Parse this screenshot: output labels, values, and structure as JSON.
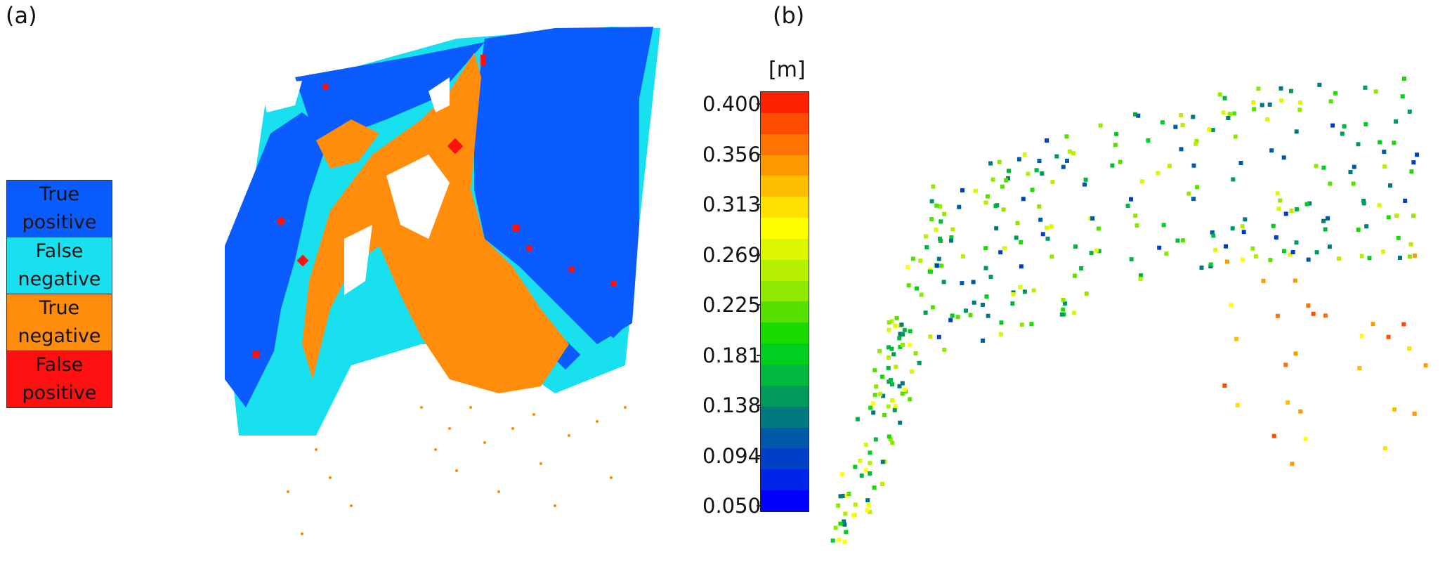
{
  "panel_a": {
    "label": "(a)",
    "legend": [
      {
        "label": "True\npositive",
        "color": "#0a5cff"
      },
      {
        "label": "False\nnegative",
        "color": "#18e0ee"
      },
      {
        "label": "True\nnegative",
        "color": "#ff8c0a"
      },
      {
        "label": "False\npositive",
        "color": "#ff1010"
      }
    ]
  },
  "panel_b": {
    "label": "(b)",
    "colorbar": {
      "unit": "[m]",
      "ticks": [
        "0.400",
        "0.356",
        "0.313",
        "0.269",
        "0.225",
        "0.181",
        "0.138",
        "0.094",
        "0.050"
      ],
      "colors": [
        "#ff2200",
        "#ff4d00",
        "#ff7300",
        "#ff9900",
        "#ffbf00",
        "#ffe000",
        "#ffff00",
        "#ddf700",
        "#b6ef00",
        "#8fe800",
        "#55e000",
        "#1adb00",
        "#00cf20",
        "#00b840",
        "#009a5a",
        "#007a80",
        "#0058a8",
        "#0040c8",
        "#0024e8",
        "#0000ff"
      ]
    }
  }
}
